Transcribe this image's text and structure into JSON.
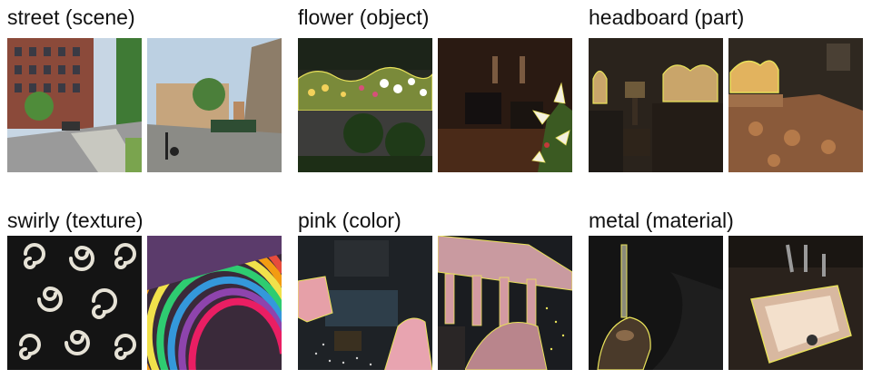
{
  "panels": [
    {
      "label": "street (scene)"
    },
    {
      "label": "flower (object)"
    },
    {
      "label": "headboard (part)"
    },
    {
      "label": "swirly (texture)"
    },
    {
      "label": "pink (color)"
    },
    {
      "label": "metal (material)"
    }
  ],
  "colors": {
    "highlight": "#e9e25a",
    "dim_overlay": "#000000"
  }
}
